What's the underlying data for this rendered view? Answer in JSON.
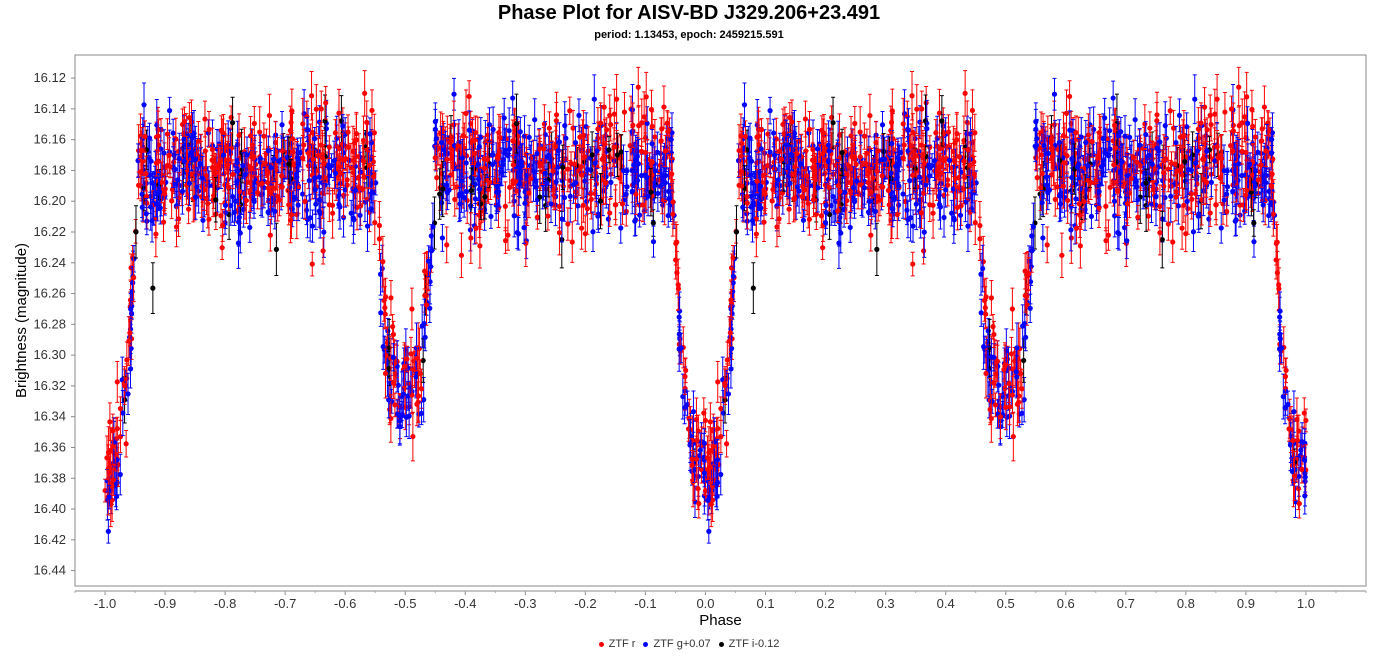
{
  "chart_data": {
    "type": "scatter",
    "title": "Phase Plot for AISV-BD J329.206+23.491",
    "subtitle": "period: 1.13453, epoch: 2459215.591",
    "xlabel": "Phase",
    "ylabel": "Brightness (magnitude)",
    "xlim": [
      -1.05,
      1.1
    ],
    "ylim": [
      16.45,
      16.105
    ],
    "y_inverted": true,
    "grid": false,
    "legend_position": "bottom-center",
    "x_ticks": [
      "-1.0",
      "-0.9",
      "-0.8",
      "-0.7",
      "-0.6",
      "-0.5",
      "-0.4",
      "-0.3",
      "-0.2",
      "-0.1",
      "0.0",
      "0.1",
      "0.2",
      "0.3",
      "0.4",
      "0.5",
      "0.6",
      "0.7",
      "0.8",
      "0.9",
      "1.0"
    ],
    "y_ticks": [
      "16.12",
      "16.14",
      "16.16",
      "16.18",
      "16.20",
      "16.22",
      "16.24",
      "16.26",
      "16.28",
      "16.30",
      "16.32",
      "16.34",
      "16.36",
      "16.38",
      "16.40",
      "16.42",
      "16.44"
    ],
    "light_curve_model": {
      "out_of_eclipse_mag": 16.178,
      "primary_eclipse": {
        "phase": 0.0,
        "min_mag": 16.372,
        "half_width": 0.055
      },
      "secondary_eclipse": {
        "phase": 0.5,
        "min_mag": 16.322,
        "half_width": 0.05
      },
      "phase_range_shown": [
        -1.0,
        1.0
      ]
    },
    "series": [
      {
        "name": "ZTF r",
        "color": "#ff0000",
        "mag_offset": 0.0,
        "scatter": 0.018,
        "error": 0.012,
        "n_points_per_cycle": 700
      },
      {
        "name": "ZTF g+0.07",
        "color": "#0000ff",
        "mag_offset": 0.005,
        "scatter": 0.018,
        "error": 0.012,
        "n_points_per_cycle": 600
      },
      {
        "name": "ZTF i-0.12",
        "color": "#000000",
        "mag_offset": 0.0,
        "scatter": 0.02,
        "error": 0.014,
        "n_points_per_cycle": 60
      }
    ]
  }
}
